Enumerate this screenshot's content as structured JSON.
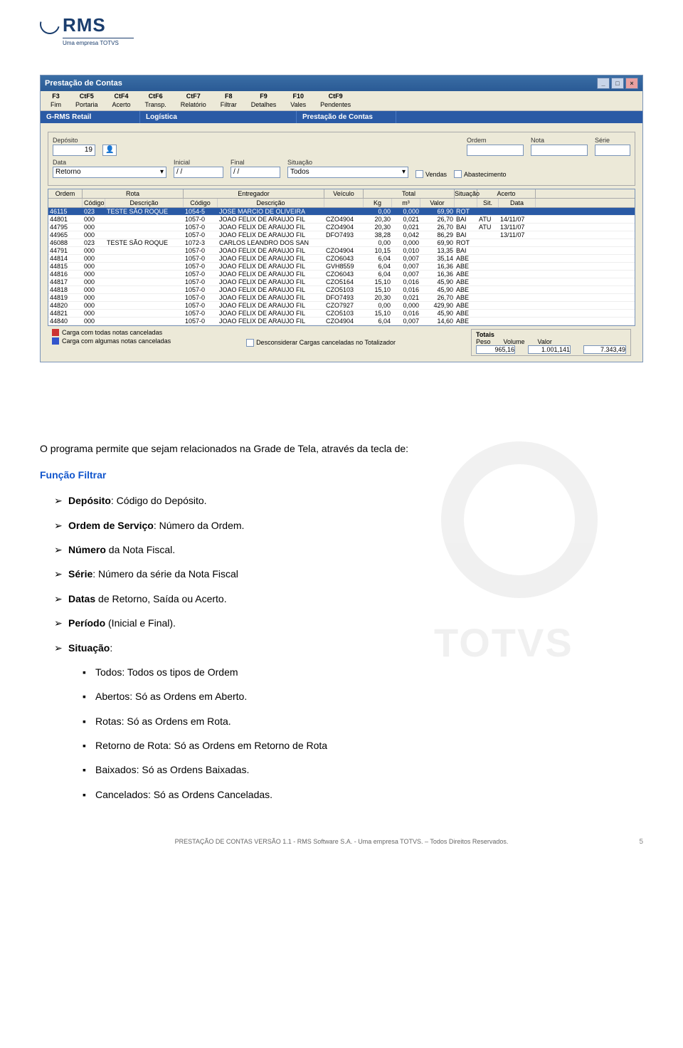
{
  "logo": {
    "brand": "RMS",
    "tagline": "Uma empresa TOTVS"
  },
  "watermark": "TOTVS",
  "window": {
    "title": "Prestação de Contas",
    "toolbar": [
      {
        "key": "F3",
        "label": "Fim"
      },
      {
        "key": "CtF5",
        "label": "Portaria"
      },
      {
        "key": "CtF4",
        "label": "Acerto"
      },
      {
        "key": "CtF6",
        "label": "Transp."
      },
      {
        "key": "CtF7",
        "label": "Relatório"
      },
      {
        "key": "F8",
        "label": "Filtrar"
      },
      {
        "key": "F9",
        "label": "Detalhes"
      },
      {
        "key": "F10",
        "label": "Vales"
      },
      {
        "key": "CtF9",
        "label": "Pendentes"
      }
    ],
    "breadcrumb": [
      "G-RMS Retail",
      "Logística",
      "Prestação de Contas"
    ],
    "filters": {
      "deposito_label": "Depósito",
      "deposito_value": "19",
      "ordem_label": "Ordem",
      "nota_label": "Nota",
      "serie_label": "Série",
      "data_label": "Data",
      "data_value": "Retorno",
      "inicial_label": "Inicial",
      "inicial_value": "/  /",
      "final_label": "Final",
      "final_value": "/  /",
      "situacao_label": "Situação",
      "situacao_value": "Todos",
      "vendas_label": "Vendas",
      "abastecimento_label": "Abastecimento"
    },
    "grid": {
      "groups": {
        "ordem": "Ordem",
        "rota": "Rota",
        "entregador": "Entregador",
        "veiculo": "Veículo",
        "total": "Total",
        "situacao": "Situação",
        "acerto": "Acerto"
      },
      "cols": {
        "codigo": "Código",
        "descricao": "Descrição",
        "kg": "Kg",
        "m3": "m³",
        "valor": "Valor",
        "sit": "Sit.",
        "data": "Data"
      },
      "rows": [
        {
          "ordem": "46115",
          "rcod": "023",
          "rdesc": "TESTE SÃO ROQUE",
          "ecod": "1054-5",
          "edesc": "JOSE MARCIO DE OLIVEIRA",
          "veic": "",
          "kg": "0,00",
          "m3": "0,000",
          "valor": "69,90",
          "sit": "ROT",
          "asit": "",
          "adata": "",
          "sel": true
        },
        {
          "ordem": "44801",
          "rcod": "000",
          "rdesc": "",
          "ecod": "1057-0",
          "edesc": "JOAO FELIX DE ARAUJO FIL",
          "veic": "CZO4904",
          "kg": "20,30",
          "m3": "0,021",
          "valor": "26,70",
          "sit": "BAI",
          "asit": "ATU",
          "adata": "14/11/07"
        },
        {
          "ordem": "44795",
          "rcod": "000",
          "rdesc": "",
          "ecod": "1057-0",
          "edesc": "JOAO FELIX DE ARAUJO FIL",
          "veic": "CZO4904",
          "kg": "20,30",
          "m3": "0,021",
          "valor": "26,70",
          "sit": "BAI",
          "asit": "ATU",
          "adata": "13/11/07"
        },
        {
          "ordem": "44965",
          "rcod": "000",
          "rdesc": "",
          "ecod": "1057-0",
          "edesc": "JOAO FELIX DE ARAUJO FIL",
          "veic": "DFO7493",
          "kg": "38,28",
          "m3": "0,042",
          "valor": "86,29",
          "sit": "BAI",
          "asit": "",
          "adata": "13/11/07"
        },
        {
          "ordem": "46088",
          "rcod": "023",
          "rdesc": "TESTE SÃO ROQUE",
          "ecod": "1072-3",
          "edesc": "CARLOS LEANDRO DOS SAN",
          "veic": "",
          "kg": "0,00",
          "m3": "0,000",
          "valor": "69,90",
          "sit": "ROT",
          "asit": "",
          "adata": ""
        },
        {
          "ordem": "44791",
          "rcod": "000",
          "rdesc": "",
          "ecod": "1057-0",
          "edesc": "JOAO FELIX DE ARAUJO FIL",
          "veic": "CZO4904",
          "kg": "10,15",
          "m3": "0,010",
          "valor": "13,35",
          "sit": "BAI",
          "asit": "",
          "adata": ""
        },
        {
          "ordem": "44814",
          "rcod": "000",
          "rdesc": "",
          "ecod": "1057-0",
          "edesc": "JOAO FELIX DE ARAUJO FIL",
          "veic": "CZO6043",
          "kg": "6,04",
          "m3": "0,007",
          "valor": "35,14",
          "sit": "ABE",
          "asit": "",
          "adata": ""
        },
        {
          "ordem": "44815",
          "rcod": "000",
          "rdesc": "",
          "ecod": "1057-0",
          "edesc": "JOAO FELIX DE ARAUJO FIL",
          "veic": "GVH8559",
          "kg": "6,04",
          "m3": "0,007",
          "valor": "16,36",
          "sit": "ABE",
          "asit": "",
          "adata": ""
        },
        {
          "ordem": "44816",
          "rcod": "000",
          "rdesc": "",
          "ecod": "1057-0",
          "edesc": "JOAO FELIX DE ARAUJO FIL",
          "veic": "CZO6043",
          "kg": "6,04",
          "m3": "0,007",
          "valor": "16,36",
          "sit": "ABE",
          "asit": "",
          "adata": ""
        },
        {
          "ordem": "44817",
          "rcod": "000",
          "rdesc": "",
          "ecod": "1057-0",
          "edesc": "JOAO FELIX DE ARAUJO FIL",
          "veic": "CZO5164",
          "kg": "15,10",
          "m3": "0,016",
          "valor": "45,90",
          "sit": "ABE",
          "asit": "",
          "adata": ""
        },
        {
          "ordem": "44818",
          "rcod": "000",
          "rdesc": "",
          "ecod": "1057-0",
          "edesc": "JOAO FELIX DE ARAUJO FIL",
          "veic": "CZO5103",
          "kg": "15,10",
          "m3": "0,016",
          "valor": "45,90",
          "sit": "ABE",
          "asit": "",
          "adata": ""
        },
        {
          "ordem": "44819",
          "rcod": "000",
          "rdesc": "",
          "ecod": "1057-0",
          "edesc": "JOAO FELIX DE ARAUJO FIL",
          "veic": "DFO7493",
          "kg": "20,30",
          "m3": "0,021",
          "valor": "26,70",
          "sit": "ABE",
          "asit": "",
          "adata": ""
        },
        {
          "ordem": "44820",
          "rcod": "000",
          "rdesc": "",
          "ecod": "1057-0",
          "edesc": "JOAO FELIX DE ARAUJO FIL",
          "veic": "CZO7927",
          "kg": "0,00",
          "m3": "0,000",
          "valor": "429,90",
          "sit": "ABE",
          "asit": "",
          "adata": ""
        },
        {
          "ordem": "44821",
          "rcod": "000",
          "rdesc": "",
          "ecod": "1057-0",
          "edesc": "JOAO FELIX DE ARAUJO FIL",
          "veic": "CZO5103",
          "kg": "15,10",
          "m3": "0,016",
          "valor": "45,90",
          "sit": "ABE",
          "asit": "",
          "adata": ""
        },
        {
          "ordem": "44840",
          "rcod": "000",
          "rdesc": "",
          "ecod": "1057-0",
          "edesc": "JOAO FELIX DE ARAUJO FIL",
          "veic": "CZO4904",
          "kg": "6,04",
          "m3": "0,007",
          "valor": "14,60",
          "sit": "ABE",
          "asit": "",
          "adata": ""
        }
      ]
    },
    "legend": {
      "all_cancel": "Carga com todas notas canceladas",
      "all_cancel_color": "#cc3333",
      "some_cancel": "Carga com algumas notas canceladas",
      "some_cancel_color": "#3355cc",
      "checkbox": "Desconsiderar Cargas canceladas no Totalizador"
    },
    "totals": {
      "title": "Totais",
      "peso_label": "Peso",
      "peso": "965,16",
      "volume_label": "Volume",
      "volume": "1.001,141",
      "valor_label": "Valor",
      "valor": "7.343,49"
    }
  },
  "doc": {
    "intro": "O programa permite que sejam relacionados na Grade de Tela, através da tecla de:",
    "func_title": "Função Filtrar",
    "b1": {
      "bold": "Depósito",
      "rest": ": Código do Depósito."
    },
    "b2": {
      "bold": "Ordem de Serviço",
      "rest": ": Número da Ordem."
    },
    "b3": {
      "bold": "Número",
      "rest": " da Nota Fiscal."
    },
    "b4": {
      "bold": "Série",
      "rest": ": Número da série da Nota Fiscal"
    },
    "b5": {
      "bold": "Datas",
      "rest": " de Retorno, Saída ou Acerto."
    },
    "b6": {
      "bold": "Período",
      "rest": " (Inicial e Final)."
    },
    "b7": {
      "bold": "Situação",
      "rest": ":"
    },
    "s1": "Todos: Todos os tipos de Ordem",
    "s2": "Abertos: Só as Ordens em Aberto.",
    "s3": "Rotas: Só as Ordens em Rota.",
    "s4": "Retorno de Rota: Só as Ordens em Retorno de Rota",
    "s5": "Baixados: Só as Ordens Baixadas.",
    "s6": "Cancelados: Só as Ordens Canceladas."
  },
  "footer": {
    "text": "PRESTAÇÃO DE CONTAS VERSÃO 1.1 - RMS Software S.A. - Uma empresa TOTVS. – Todos Direitos Reservados.",
    "page": "5"
  }
}
